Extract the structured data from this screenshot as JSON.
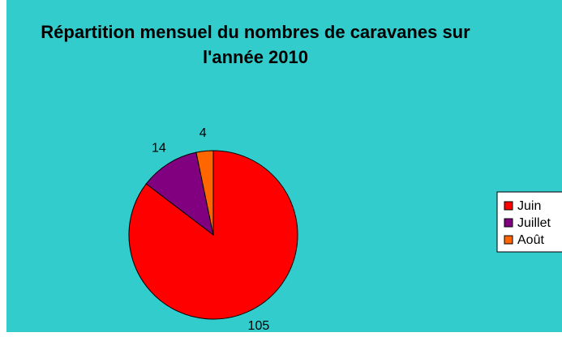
{
  "chart_data": {
    "type": "pie",
    "title": "Répartition mensuel du nombres de caravanes sur l'année 2010",
    "categories": [
      "Juin",
      "Juillet",
      "Août"
    ],
    "values": [
      105,
      14,
      4
    ],
    "colors": [
      "#FF0000",
      "#800080",
      "#FF6600"
    ],
    "legend": "right"
  }
}
